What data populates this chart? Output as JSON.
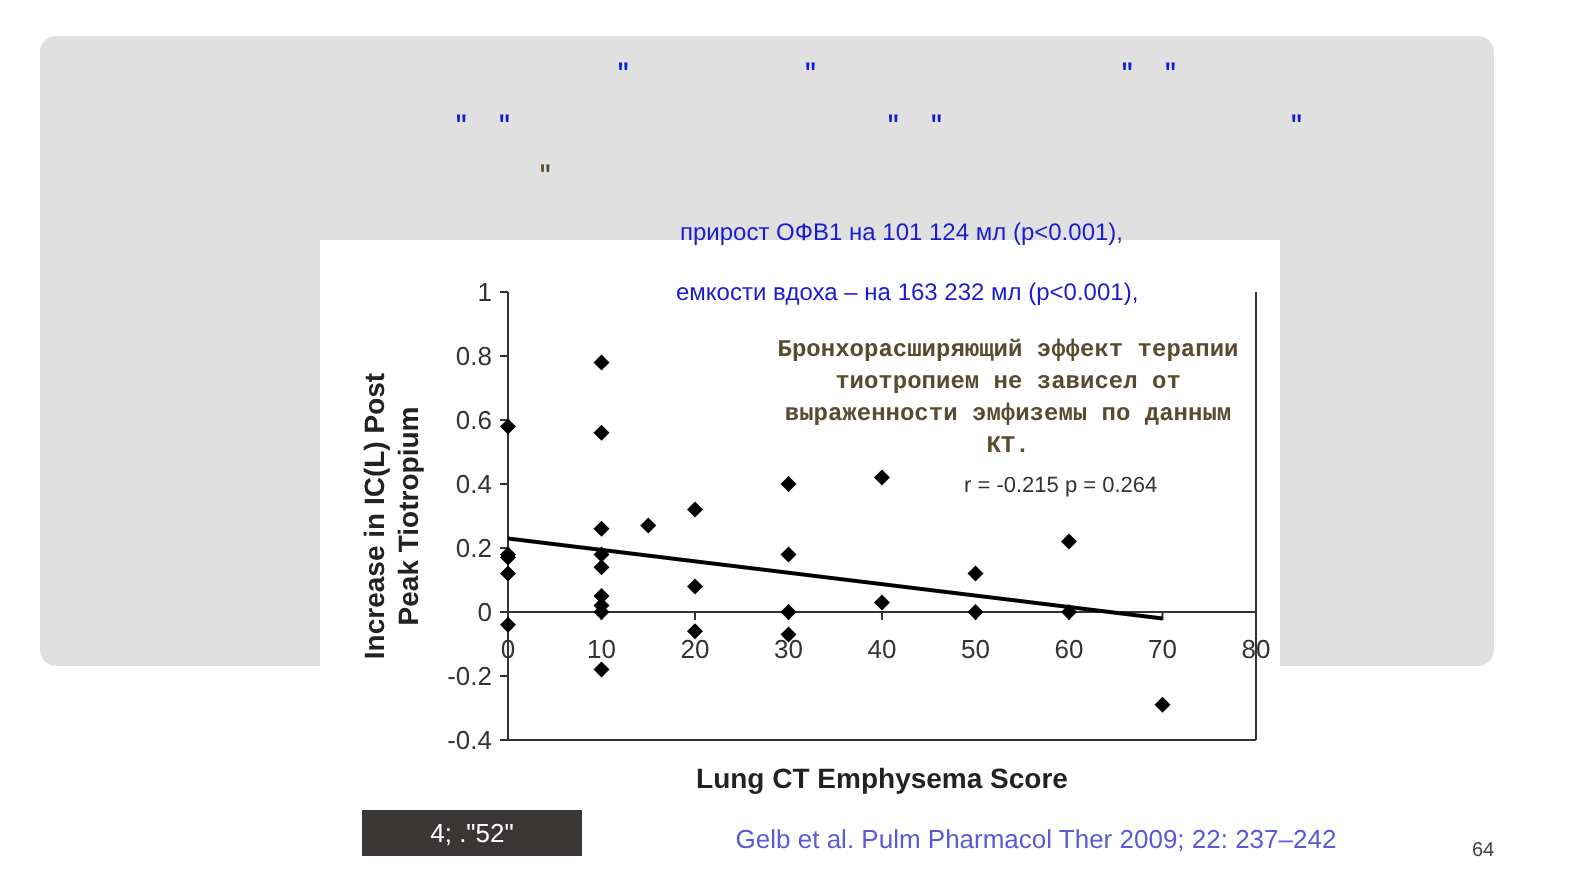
{
  "chart_data": {
    "type": "scatter",
    "xlabel": "Lung CT Emphysema Score",
    "ylabel": "Increase in IC(L) Post\nPeak Tiotropium",
    "xlim": [
      0,
      80
    ],
    "xticks": [
      0,
      10,
      20,
      30,
      40,
      50,
      60,
      70,
      80
    ],
    "ylim": [
      -0.4,
      1
    ],
    "yticks": [
      -0.4,
      -0.2,
      0,
      0.2,
      0.4,
      0.6,
      0.8,
      1
    ],
    "grid": false,
    "series": [
      {
        "marker": "diamond",
        "color": "#000000",
        "x": [
          0,
          0,
          0,
          0,
          0,
          10,
          10,
          10,
          10,
          10,
          10,
          10,
          10,
          10,
          15,
          20,
          20,
          20,
          30,
          30,
          30,
          30,
          40,
          40,
          50,
          50,
          60,
          60,
          70
        ],
        "values": [
          0.58,
          0.18,
          0.17,
          0.12,
          -0.04,
          0.78,
          0.56,
          0.26,
          0.18,
          0.14,
          0.05,
          0.02,
          0,
          -0.18,
          0.27,
          0.32,
          0.08,
          -0.06,
          0.4,
          0.18,
          0,
          -0.07,
          0.42,
          0.03,
          0.12,
          0,
          0.22,
          0,
          -0.29
        ]
      },
      {
        "type": "line",
        "color": "#000000",
        "x": [
          0,
          70
        ],
        "values": [
          0.23,
          -0.02
        ]
      }
    ],
    "annotations": [
      "\"            \"                     \"  \"",
      "\"  \"                          \"  \"                        \"",
      "\"",
      "прирост ОФВ1 на 101  124 мл (p<0.001),",
      "емкости вдоха  – на 163  232 мл (p<0.001),",
      "Бронхорасширяющий эффект терапии\nтиотропием не зависел от\nвыраженности эмфиземы по данным\nКТ.",
      "r = -0.215 p = 0.264",
      "4; .\"52\"",
      "Gelb  et al. Pulm Pharmacol Ther 2009; 22: 237–242",
      "64"
    ]
  }
}
